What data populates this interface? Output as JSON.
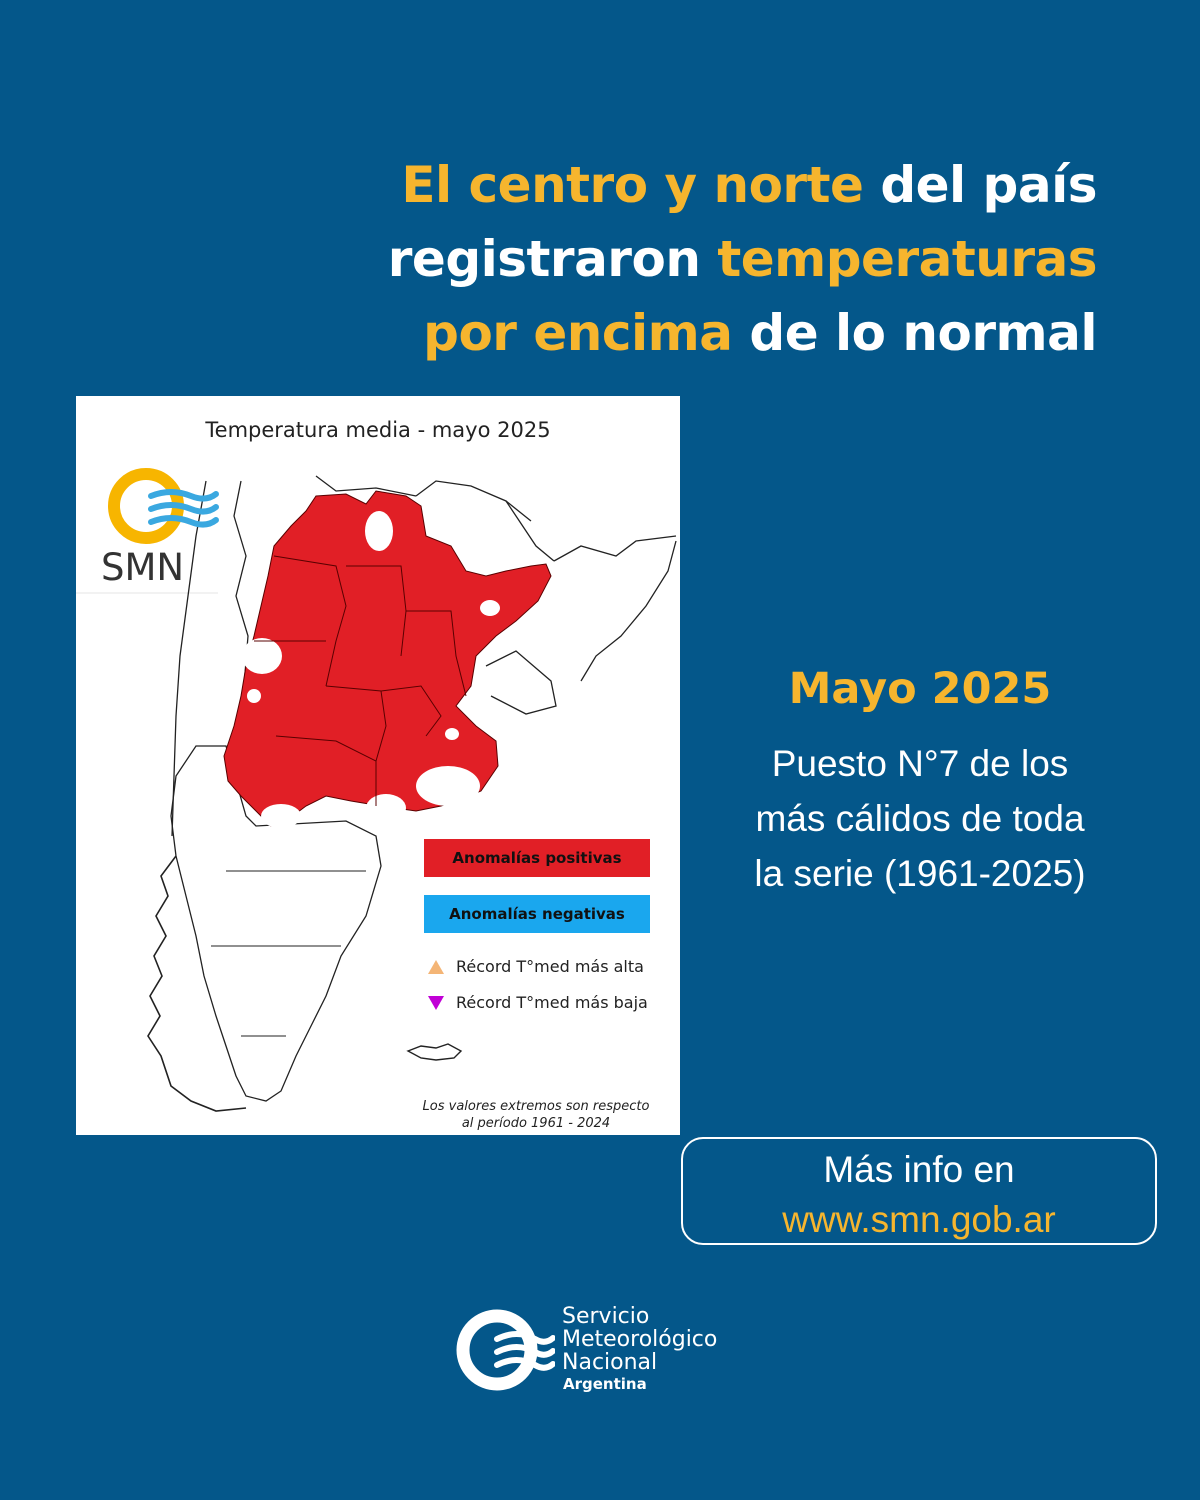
{
  "headline": {
    "part1": "El centro y norte",
    "part2": " del país",
    "part3": "registraron ",
    "part4": "temperaturas",
    "part5": "por encima",
    "part6": " de lo normal"
  },
  "map": {
    "title": "Temperatura media - mayo 2025",
    "logo_text": "SMN",
    "legend": {
      "positive": "Anomalías positivas",
      "negative": "Anomalías negativas",
      "record_high": "Récord T°med más alta",
      "record_low": "Récord T°med más baja"
    },
    "footnote_line1": "Los valores extremos son respecto",
    "footnote_line2": "al período 1961 - 2024",
    "colors": {
      "positive": "#e11f26",
      "negative": "#1aa7ee",
      "record_high": "#f4b576",
      "record_low": "#c100d6"
    }
  },
  "side": {
    "title": "Mayo 2025",
    "line1": "Puesto N°7 de los",
    "line2": "más cálidos de toda",
    "line3": "la serie (1961-2025)"
  },
  "info": {
    "label": "Más info en",
    "url": "www.smn.gob.ar"
  },
  "brand": {
    "line1": "Servicio",
    "line2": "Meteorológico",
    "line3": "Nacional",
    "line4": "Argentina"
  },
  "colors": {
    "background": "#04578a",
    "accent": "#f6b52e",
    "text": "#ffffff"
  }
}
